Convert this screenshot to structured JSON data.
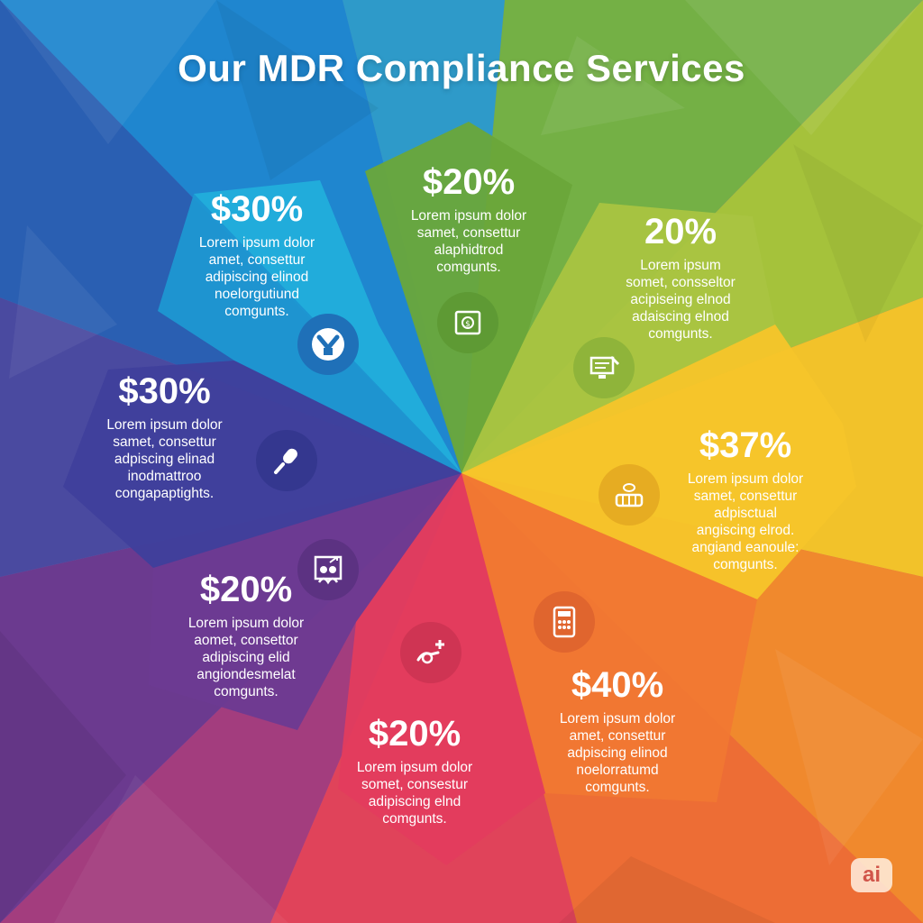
{
  "title": "Our MDR Compliance Services",
  "segments": [
    {
      "value": "$30%",
      "text": "Lorem ipsum dolor\namet, consettur\nadipiscing elinod\nnoelorgutiund\ncomgunts.",
      "icon": "shield-badge-icon"
    },
    {
      "value": "$20%",
      "text": "Lorem ipsum dolor\nsamet, consettur\nalaphidtrod\ncomgunts.",
      "icon": "money-document-icon"
    },
    {
      "value": "20%",
      "text": "Lorem ipsum\nsomet, consseltor\nacipiseing elnod\nadaiscing elnod\ncomgunts.",
      "icon": "computer-tools-icon"
    },
    {
      "value": "$37%",
      "text": "Lorem ipsum dolor\nsamet, consettur\nadpisctual\nangiscing elrod.\nangiand eanoule:\ncomgunts.",
      "icon": "coins-stack-icon"
    },
    {
      "value": "$40%",
      "text": "Lorem ipsum dolor\namet, consettur\nadpiscing elinod\nnoelorratumd\ncomgunts.",
      "icon": "calculator-icon"
    },
    {
      "value": "$20%",
      "text": "Lorem ipsum dolor\nsomet, consestur\nadipiscing elnd\ncomgunts.",
      "icon": "hand-plus-icon"
    },
    {
      "value": "$20%",
      "text": "Lorem ipsum dolor\naomet, consettor\nadipiscing elid\nangiondesmelat\ncomgunts.",
      "icon": "people-growth-icon"
    },
    {
      "value": "$30%",
      "text": "Lorem ipsum dolor\nsamet, consettur\nadpiscing elinad\ninodmattroo\ncongapaptights.",
      "icon": "microphone-icon"
    }
  ],
  "badge": "ai",
  "colors": {
    "blue": "#1fa6d8",
    "green": "#7bb33d",
    "yellow": "#f2c41e",
    "orange": "#ef7a25",
    "red": "#e23a55",
    "purple": "#6b3c8f"
  }
}
